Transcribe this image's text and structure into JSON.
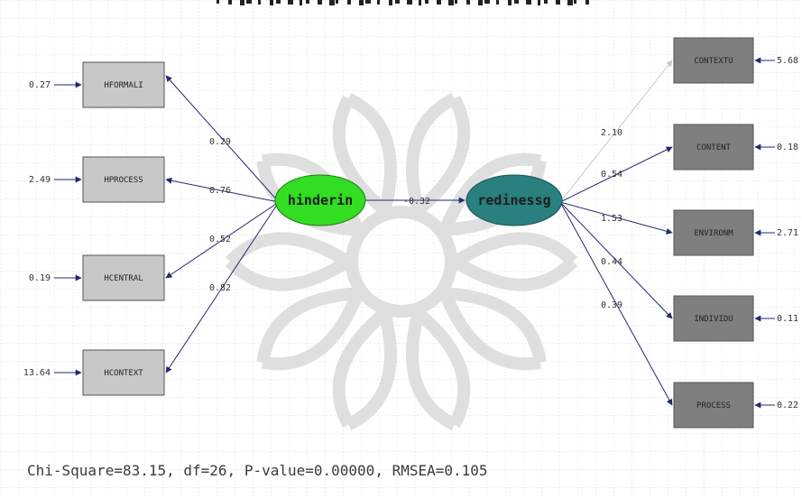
{
  "colors": {
    "grid": "#d6d6d6",
    "grid_minor": "#eaeaea",
    "box_light": "#c8c8c8",
    "box_dark": "#7f7f7f",
    "latent_exo": "#33dd22",
    "latent_endo": "#2a7f7f",
    "arrow": "#232a6e",
    "arrow_faint": "#c9c9c9",
    "label": "#333333",
    "watermark": "#dcdcdc"
  },
  "latent": {
    "hindering": {
      "label": "hinderin"
    },
    "readiness": {
      "label": "redinessg"
    }
  },
  "left_indicators": [
    {
      "name": "HFORMALI",
      "loading": "0.29",
      "error": "0.27"
    },
    {
      "name": "HPROCESS",
      "loading": "0.76",
      "error": "2.49"
    },
    {
      "name": "HCENTRAL",
      "loading": "0.52",
      "error": "0.19"
    },
    {
      "name": "HCONTEXT",
      "loading": "0.82",
      "error": "13.64"
    }
  ],
  "right_indicators": [
    {
      "name": "CONTEXTU",
      "loading": "2.10",
      "error": "5.68"
    },
    {
      "name": "CONTENT",
      "loading": "0.54",
      "error": "0.18"
    },
    {
      "name": "ENVIRONM",
      "loading": "1.53",
      "error": "2.71"
    },
    {
      "name": "INDIVIDU",
      "loading": "0.44",
      "error": "0.11"
    },
    {
      "name": "PROCESS",
      "loading": "0.39",
      "error": "0.22"
    }
  ],
  "structural_path": {
    "coefficient": "-0.32"
  },
  "fit_statistics": "Chi-Square=83.15, df=26, P-value=0.00000, RMSEA=0.105"
}
